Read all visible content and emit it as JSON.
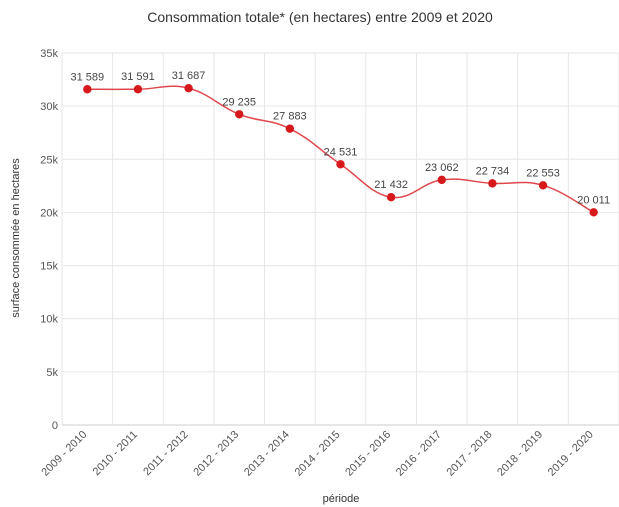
{
  "chart_data": {
    "type": "line",
    "title": "Consommation totale* (en hectares) entre 2009 et 2020",
    "xlabel": "période",
    "ylabel": "surface consommée en hectares",
    "categories": [
      "2009 - 2010",
      "2010 - 2011",
      "2011 - 2012",
      "2012 - 2013",
      "2013 - 2014",
      "2014 - 2015",
      "2015 - 2016",
      "2016 - 2017",
      "2017 - 2018",
      "2018 - 2019",
      "2019 - 2020"
    ],
    "series": [
      {
        "values": [
          31589,
          31591,
          31687,
          29235,
          27883,
          24531,
          21432,
          23062,
          22734,
          22553,
          20011
        ],
        "labels": [
          "31 589",
          "31 591",
          "31 687",
          "29 235",
          "27 883",
          "24 531",
          "21 432",
          "23 062",
          "22 734",
          "22 553",
          "20 011"
        ]
      }
    ],
    "ylim": [
      0,
      35000
    ],
    "yticks": [
      0,
      5000,
      10000,
      15000,
      20000,
      25000,
      30000,
      35000
    ],
    "ytick_labels": [
      "0",
      "5k",
      "10k",
      "15k",
      "20k",
      "25k",
      "30k",
      "35k"
    ],
    "grid": true,
    "legend": "none",
    "colors": {
      "line": "#e0474c",
      "marker": "#d7191c",
      "grid": "#e6e6e6",
      "axis": "#cccccc"
    }
  }
}
